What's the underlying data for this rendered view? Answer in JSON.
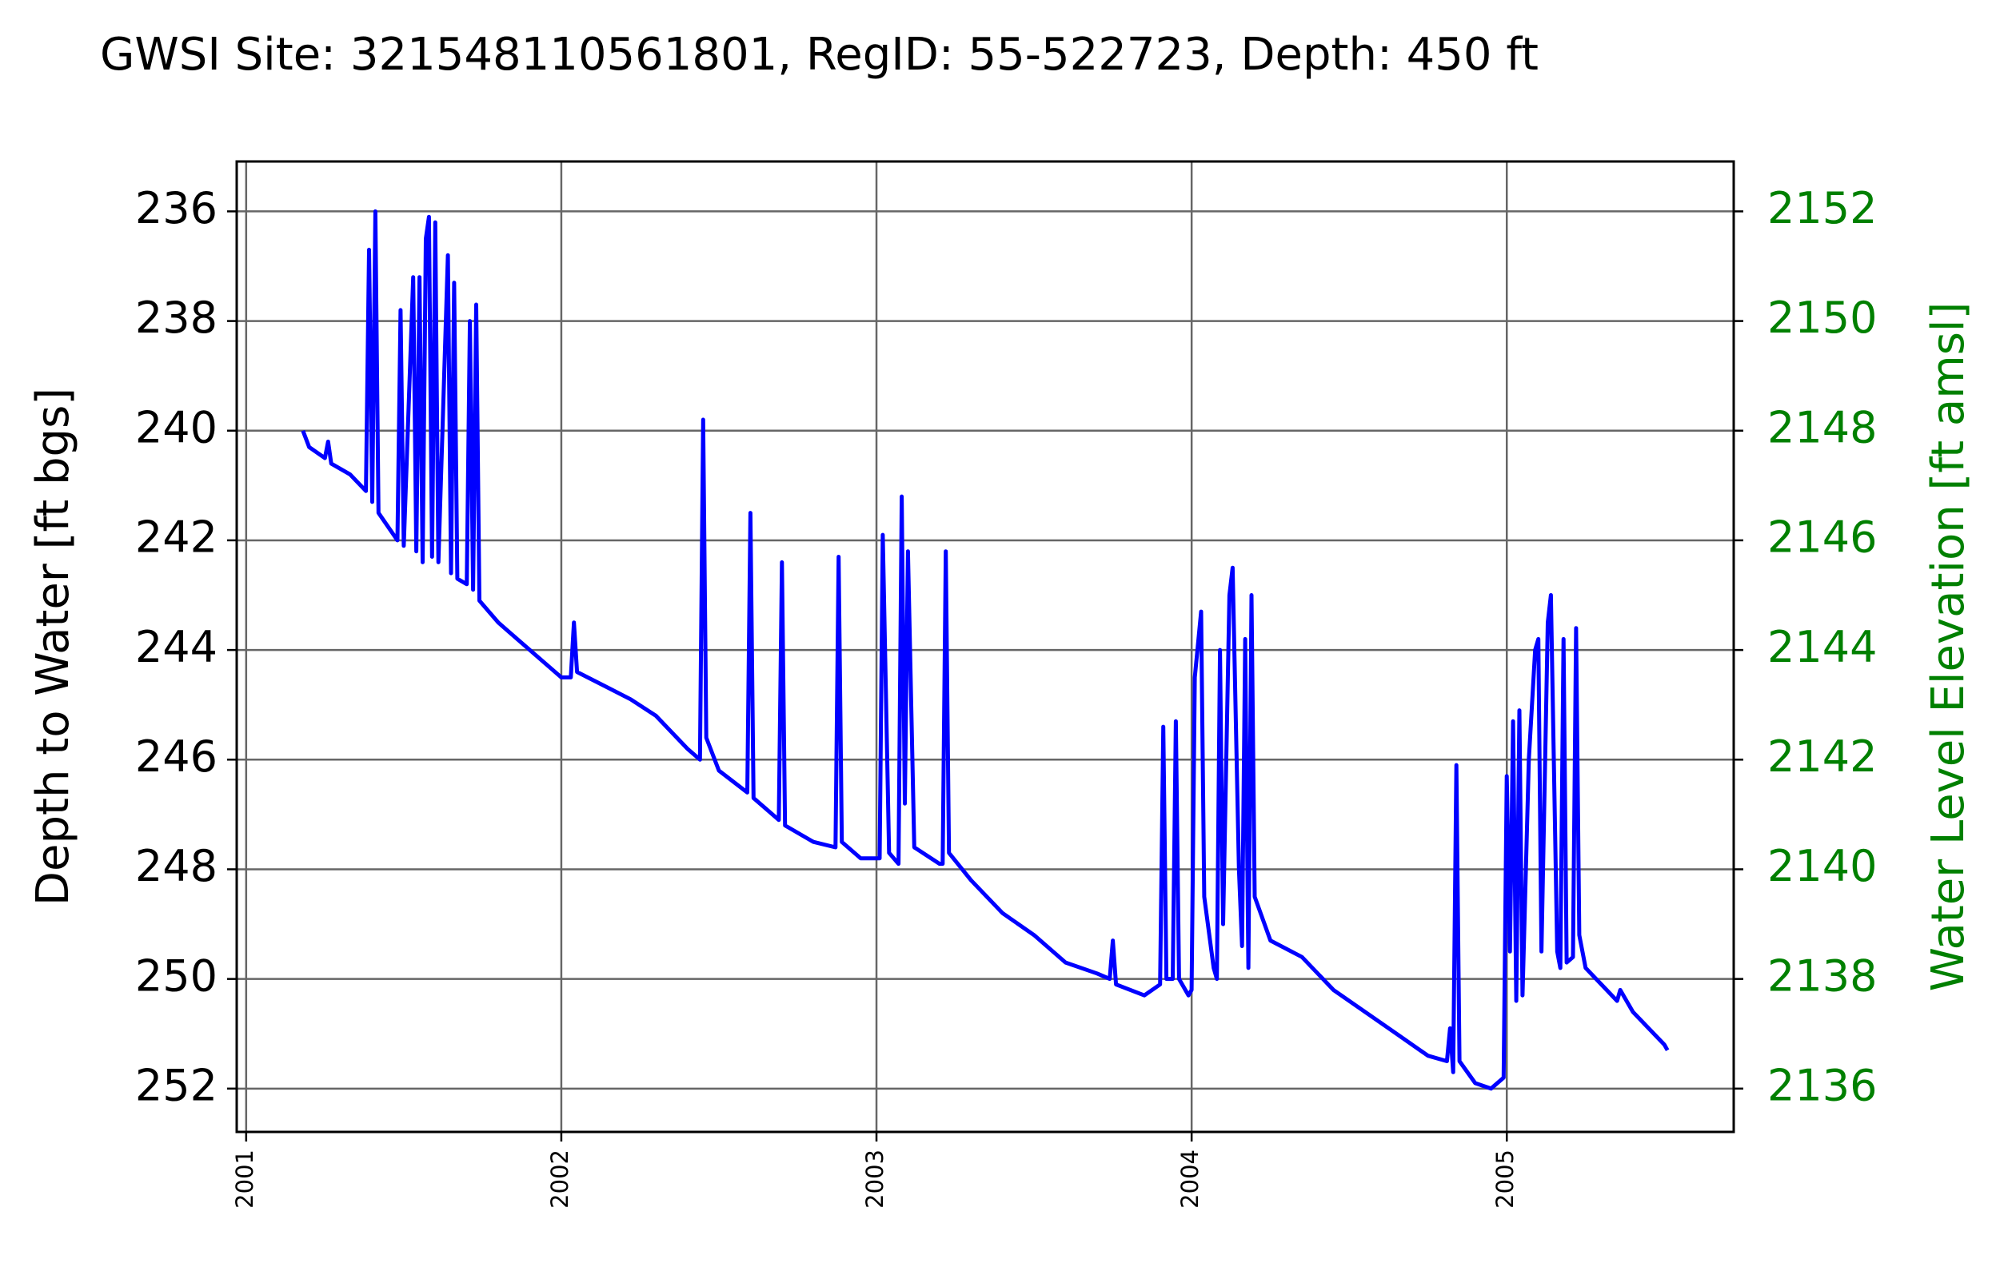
{
  "chart_data": {
    "type": "line",
    "title": "GWSI Site: 321548110561801, RegID: 55-522723, Depth: 450 ft",
    "ylabel": "Depth to Water [ft bgs]",
    "y2label": "Water Level Elevation [ft amsl]",
    "y2color": "#008000",
    "grid": true,
    "xlim": [
      2000.97,
      2005.72
    ],
    "xticks": [
      2001,
      2002,
      2003,
      2004,
      2005
    ],
    "ylim": [
      252.79,
      235.09
    ],
    "yticks": [
      236,
      238,
      240,
      242,
      244,
      246,
      248,
      250,
      252
    ],
    "y2lim": [
      2135.21,
      2152.91
    ],
    "y2ticks": [
      2136,
      2138,
      2140,
      2142,
      2144,
      2146,
      2148,
      2150,
      2152
    ],
    "x": [
      2001.18,
      2001.2,
      2001.25,
      2001.26,
      2001.27,
      2001.33,
      2001.38,
      2001.39,
      2001.4,
      2001.41,
      2001.42,
      2001.48,
      2001.49,
      2001.5,
      2001.53,
      2001.54,
      2001.55,
      2001.56,
      2001.57,
      2001.58,
      2001.59,
      2001.6,
      2001.61,
      2001.64,
      2001.65,
      2001.66,
      2001.67,
      2001.7,
      2001.71,
      2001.72,
      2001.73,
      2001.74,
      2001.8,
      2001.9,
      2002.0,
      2002.03,
      2002.04,
      2002.05,
      2002.22,
      2002.3,
      2002.4,
      2002.44,
      2002.45,
      2002.46,
      2002.5,
      2002.59,
      2002.6,
      2002.61,
      2002.69,
      2002.7,
      2002.71,
      2002.8,
      2002.87,
      2002.88,
      2002.89,
      2002.95,
      2003.01,
      2003.02,
      2003.04,
      2003.07,
      2003.08,
      2003.09,
      2003.1,
      2003.12,
      2003.2,
      2003.21,
      2003.22,
      2003.23,
      2003.3,
      2003.4,
      2003.5,
      2003.6,
      2003.7,
      2003.74,
      2003.75,
      2003.76,
      2003.85,
      2003.9,
      2003.91,
      2003.92,
      2003.94,
      2003.95,
      2003.96,
      2003.99,
      2004.0,
      2004.01,
      2004.03,
      2004.04,
      2004.07,
      2004.08,
      2004.09,
      2004.1,
      2004.12,
      2004.13,
      2004.15,
      2004.16,
      2004.17,
      2004.18,
      2004.19,
      2004.2,
      2004.25,
      2004.35,
      2004.45,
      2004.55,
      2004.65,
      2004.75,
      2004.81,
      2004.82,
      2004.83,
      2004.84,
      2004.85,
      2004.9,
      2004.95,
      2004.99,
      2005.0,
      2005.01,
      2005.02,
      2005.03,
      2005.04,
      2005.05,
      2005.07,
      2005.09,
      2005.1,
      2005.11,
      2005.13,
      2005.14,
      2005.16,
      2005.17,
      2005.18,
      2005.19,
      2005.21,
      2005.22,
      2005.23,
      2005.25,
      2005.3,
      2005.35,
      2005.36,
      2005.4,
      2005.5,
      2005.51
    ],
    "series": [
      {
        "color": "#0000ff",
        "values": [
          240.0,
          240.3,
          240.5,
          240.2,
          240.6,
          240.8,
          241.1,
          236.7,
          241.3,
          236.0,
          241.5,
          242.0,
          237.8,
          242.1,
          237.2,
          242.2,
          237.2,
          242.4,
          236.5,
          236.1,
          242.3,
          236.2,
          242.4,
          236.8,
          242.6,
          237.3,
          242.7,
          242.8,
          238.0,
          242.9,
          237.7,
          243.1,
          243.5,
          244.0,
          244.5,
          244.5,
          243.5,
          244.4,
          244.9,
          245.2,
          245.8,
          246.0,
          239.8,
          245.6,
          246.2,
          246.6,
          241.5,
          246.7,
          247.1,
          242.4,
          247.2,
          247.5,
          247.6,
          242.3,
          247.5,
          247.8,
          247.8,
          241.9,
          247.7,
          247.9,
          241.2,
          246.8,
          242.2,
          247.6,
          247.9,
          247.9,
          242.2,
          247.7,
          248.2,
          248.8,
          249.2,
          249.7,
          249.9,
          250.0,
          249.3,
          250.1,
          250.3,
          250.1,
          245.4,
          250.0,
          250.0,
          245.3,
          250.0,
          250.3,
          250.2,
          244.5,
          243.3,
          248.5,
          249.8,
          250.0,
          244.0,
          249.0,
          243.0,
          242.5,
          248.0,
          249.4,
          243.8,
          249.8,
          243.0,
          248.5,
          249.3,
          249.6,
          250.2,
          250.6,
          251.0,
          251.4,
          251.5,
          250.9,
          251.7,
          246.1,
          251.5,
          251.9,
          252.0,
          251.8,
          246.3,
          249.5,
          245.3,
          250.4,
          245.1,
          250.3,
          246.0,
          244.0,
          243.8,
          249.5,
          243.5,
          243.0,
          249.5,
          249.8,
          243.8,
          249.7,
          249.6,
          243.6,
          249.2,
          249.8,
          250.1,
          250.4,
          250.2,
          250.6,
          251.2,
          251.3
        ]
      }
    ]
  }
}
